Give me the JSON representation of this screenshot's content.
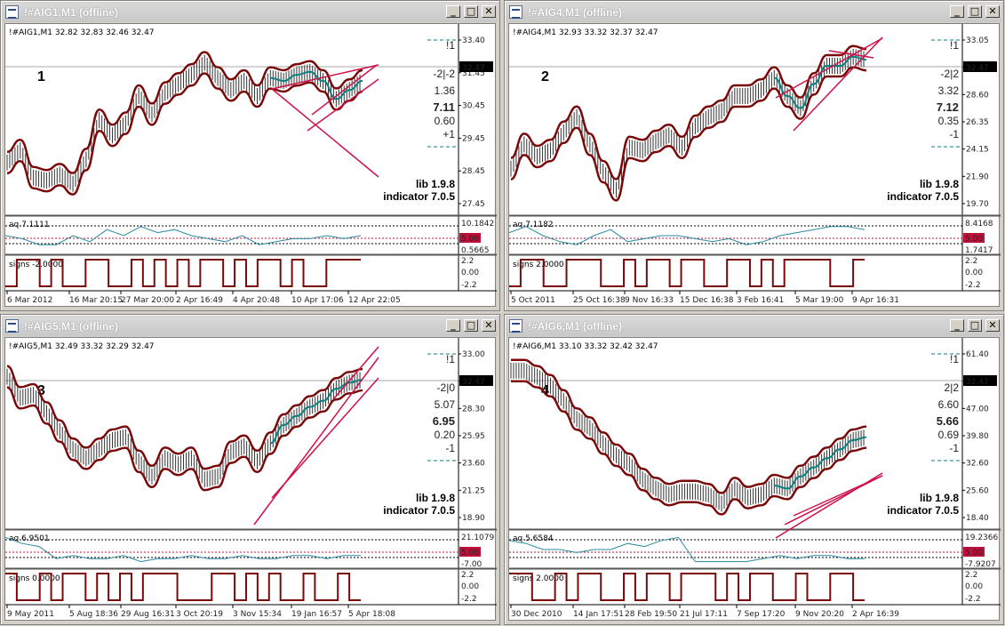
{
  "windows": [
    {
      "title": "!#AIG1,M1 (offline)",
      "header": "!#AIG1,M1  32.82 32.83 32.46 32.47",
      "number": "1",
      "y_ticks": [
        "33.40",
        "31.45",
        "30.45",
        "29.45",
        "28.45",
        "27.45"
      ],
      "price": "32.47",
      "stats": [
        "!1",
        "-2|-2",
        "1.36",
        "7.11",
        "0.60",
        "+1"
      ],
      "lib": "lib 1.9.8",
      "indicator": "indicator 7.0.5",
      "aq_label": "aq 7.1111",
      "aq_ticks": [
        "10.1842",
        "5.00",
        "0.5665"
      ],
      "signs_label": "signs -2.0000",
      "signs_ticks": [
        "2.2",
        "0.00",
        "-2.2"
      ],
      "x_ticks": [
        "6 Mar 2012",
        "16 Mar 20:15",
        "27 Mar 20:00",
        "2 Apr 16:49",
        "4 Apr 20:48",
        "10 Apr 17:06",
        "12 Apr 22:05"
      ]
    },
    {
      "title": "!#AIG4,M1 (offline)",
      "header": "!#AIG4,M1  32.93 33.32 32.37 32.47",
      "number": "2",
      "y_ticks": [
        "33.05",
        "30.80",
        "28.60",
        "26.35",
        "24.15",
        "21.90",
        "19.70"
      ],
      "price": "32.47",
      "stats": [
        "!1",
        "-2|2",
        "3.32",
        "7.12",
        "0.35",
        "-1"
      ],
      "lib": "lib 1.9.8",
      "indicator": "indicator 7.0.5",
      "aq_label": "aq 7.1182",
      "aq_ticks": [
        "8.4168",
        "5.00",
        "1.7417"
      ],
      "signs_label": "signs 2.0000",
      "signs_ticks": [
        "2.2",
        "0.00",
        "-2.2"
      ],
      "x_ticks": [
        "5 Oct 2011",
        "25 Oct 16:38",
        "9 Nov 16:33",
        "15 Dec 16:38",
        "3 Feb 16:41",
        "5 Mar 19:00",
        "9 Apr 16:31"
      ]
    },
    {
      "title": "!#AIG5,M1 (offline)",
      "header": "!#AIG5,M1  32.49 33.32 32.29 32.47",
      "number": "3",
      "y_ticks": [
        "33.00",
        "30.65",
        "28.30",
        "25.95",
        "23.60",
        "21.25",
        "18.90"
      ],
      "price": "32.47",
      "stats": [
        "!1",
        "-2|0",
        "5.07",
        "6.95",
        "0.20",
        "-1"
      ],
      "lib": "lib 1.9.8",
      "indicator": "indicator 7.0.5",
      "aq_label": "aq 6.9501",
      "aq_ticks": [
        "21.1079",
        "5.00",
        "-7.00"
      ],
      "signs_label": "signs 0.0000",
      "signs_ticks": [
        "2.2",
        "0.00",
        "-2.2"
      ],
      "x_ticks": [
        "9 May 2011",
        "5 Aug 18:36",
        "29 Aug 16:31",
        "3 Oct 20:19",
        "3 Nov 15:34",
        "19 Jan 16:57",
        "5 Apr 18:08"
      ]
    },
    {
      "title": "!#AIG6,M1 (offline)",
      "header": "!#AIG6,M1  33.10 33.32 32.42 32.47",
      "number": "4",
      "y_ticks": [
        "61.40",
        "54.20",
        "47.00",
        "39.80",
        "32.60",
        "25.60",
        "18.40"
      ],
      "price": "32.47",
      "stats": [
        "!1",
        "2|2",
        "6.60",
        "5.66",
        "0.69",
        "-1"
      ],
      "lib": "lib 1.9.8",
      "indicator": "indicator 7.0.5",
      "aq_label": "aq 5.6584",
      "aq_ticks": [
        "19.2366",
        "5.00",
        "-7.9207"
      ],
      "signs_label": "signs 2.0000",
      "signs_ticks": [
        "2.2",
        "0.00",
        "-2.2"
      ],
      "x_ticks": [
        "30 Dec 2010",
        "14 Jan 17:51",
        "28 Feb 19:50",
        "21 Jul 17:11",
        "7 Sep 17:20",
        "9 Nov 20:20",
        "2 Apr 16:39"
      ]
    }
  ],
  "colors": {
    "band": "#7a0a0a",
    "trend": "#d0104a",
    "stat_teal": "#0b8080",
    "stat_red": "#c0103a",
    "stat_purple": "#7a2a8a",
    "aq_line": "#2a8aa0",
    "signs_line": "#7a0a0a"
  }
}
